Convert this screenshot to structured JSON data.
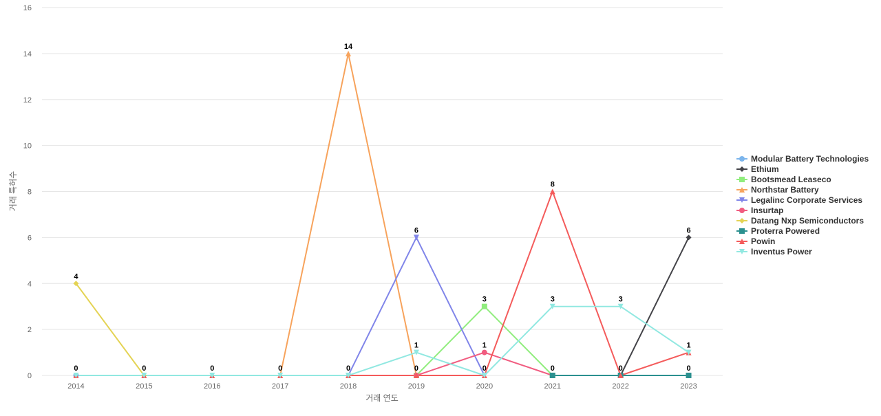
{
  "chart_data": {
    "type": "line",
    "title": "",
    "xlabel": "거래 연도",
    "ylabel": "거래 특허수",
    "ylim": [
      0,
      16
    ],
    "yticks": [
      0,
      2,
      4,
      6,
      8,
      10,
      12,
      14,
      16
    ],
    "grid": true,
    "legend_position": "right",
    "categories": [
      "2014",
      "2015",
      "2016",
      "2017",
      "2018",
      "2019",
      "2020",
      "2021",
      "2022",
      "2023"
    ],
    "series": [
      {
        "name": "Modular Battery Technologies",
        "color": "#7cb5ec",
        "marker": "circle",
        "values": [
          0,
          null,
          null,
          null,
          null,
          null,
          null,
          null,
          null,
          null
        ]
      },
      {
        "name": "Ethium",
        "color": "#434348",
        "marker": "diamond",
        "values": [
          null,
          null,
          null,
          null,
          null,
          null,
          null,
          null,
          0,
          6
        ]
      },
      {
        "name": "Bootsmead Leaseco",
        "color": "#90ed7d",
        "marker": "square",
        "values": [
          null,
          null,
          null,
          null,
          null,
          0,
          3,
          0,
          null,
          null
        ]
      },
      {
        "name": "Northstar Battery",
        "color": "#f7a35c",
        "marker": "triangle",
        "values": [
          null,
          null,
          null,
          0,
          14,
          0,
          null,
          null,
          null,
          null
        ]
      },
      {
        "name": "Legalinc Corporate Services",
        "color": "#8085e9",
        "marker": "triangle-down",
        "values": [
          null,
          null,
          null,
          null,
          0,
          6,
          0,
          null,
          null,
          null
        ]
      },
      {
        "name": "Insurtap",
        "color": "#f15c80",
        "marker": "circle",
        "values": [
          null,
          null,
          null,
          null,
          null,
          0,
          1,
          0,
          null,
          null
        ]
      },
      {
        "name": "Datang Nxp Semiconductors",
        "color": "#e4d354",
        "marker": "diamond",
        "values": [
          4,
          0,
          null,
          null,
          null,
          null,
          null,
          null,
          null,
          null
        ]
      },
      {
        "name": "Proterra Powered",
        "color": "#2b908f",
        "marker": "square",
        "values": [
          null,
          null,
          null,
          null,
          null,
          null,
          null,
          0,
          0,
          0
        ]
      },
      {
        "name": "Powin",
        "color": "#f45b5b",
        "marker": "triangle",
        "values": [
          0,
          0,
          0,
          0,
          0,
          0,
          0,
          8,
          0,
          1
        ]
      },
      {
        "name": "Inventus Power",
        "color": "#91e8e1",
        "marker": "triangle-down",
        "values": [
          0,
          0,
          0,
          0,
          0,
          1,
          0,
          3,
          3,
          1
        ]
      }
    ],
    "data_labels": [
      {
        "series": "Powin",
        "index": 0,
        "text": "0"
      },
      {
        "series": "Datang Nxp Semiconductors",
        "index": 0,
        "text": "4"
      },
      {
        "series": "Powin",
        "index": 1,
        "text": "0"
      },
      {
        "series": "Powin",
        "index": 2,
        "text": "0"
      },
      {
        "series": "Powin",
        "index": 3,
        "text": "0"
      },
      {
        "series": "Powin",
        "index": 4,
        "text": "0"
      },
      {
        "series": "Northstar Battery",
        "index": 4,
        "text": "14"
      },
      {
        "series": "Powin",
        "index": 5,
        "text": "0"
      },
      {
        "series": "Inventus Power",
        "index": 5,
        "text": "1"
      },
      {
        "series": "Legalinc Corporate Services",
        "index": 5,
        "text": "6"
      },
      {
        "series": "Powin",
        "index": 6,
        "text": "0"
      },
      {
        "series": "Insurtap",
        "index": 6,
        "text": "1"
      },
      {
        "series": "Bootsmead Leaseco",
        "index": 6,
        "text": "3"
      },
      {
        "series": "Proterra Powered",
        "index": 7,
        "text": "0"
      },
      {
        "series": "Inventus Power",
        "index": 7,
        "text": "3"
      },
      {
        "series": "Powin",
        "index": 7,
        "text": "8"
      },
      {
        "series": "Powin",
        "index": 8,
        "text": "0"
      },
      {
        "series": "Inventus Power",
        "index": 8,
        "text": "3"
      },
      {
        "series": "Proterra Powered",
        "index": 9,
        "text": "0"
      },
      {
        "series": "Inventus Power",
        "index": 9,
        "text": "1"
      },
      {
        "series": "Ethium",
        "index": 9,
        "text": "6"
      }
    ]
  }
}
